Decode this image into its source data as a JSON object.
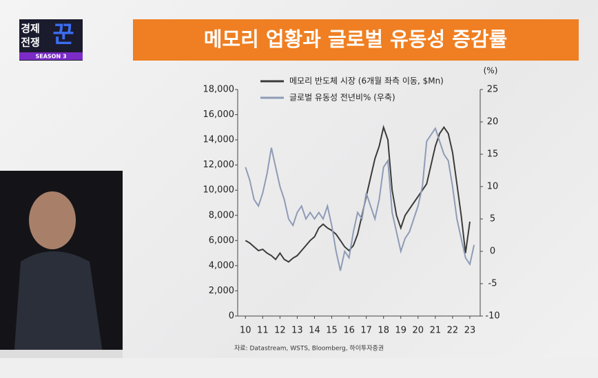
{
  "logo": {
    "line1": "경제",
    "line2": "전쟁",
    "mark": "꾼",
    "season": "SEASON 3"
  },
  "chart_data": {
    "type": "line",
    "title": "메모리 업황과 글로벌 유동성 증감률",
    "y2_unit": "(%)",
    "source": "자료: Datastream, WSTS, Bloomberg, 하이투자증권",
    "x": [
      10,
      10.25,
      10.5,
      10.75,
      11,
      11.25,
      11.5,
      11.75,
      12,
      12.25,
      12.5,
      12.75,
      13,
      13.25,
      13.5,
      13.75,
      14,
      14.25,
      14.5,
      14.75,
      15,
      15.25,
      15.5,
      15.75,
      16,
      16.25,
      16.5,
      16.75,
      17,
      17.25,
      17.5,
      17.75,
      18,
      18.25,
      18.5,
      18.75,
      19,
      19.25,
      19.5,
      19.75,
      20,
      20.25,
      20.5,
      20.75,
      21,
      21.25,
      21.5,
      21.75,
      22,
      22.25,
      22.5,
      22.75,
      23,
      23.25
    ],
    "xlim": [
      9.55,
      23.6
    ],
    "xticks": [
      10,
      11,
      12,
      13,
      14,
      15,
      16,
      17,
      18,
      19,
      20,
      21,
      22,
      23
    ],
    "ylim": [
      0,
      18000
    ],
    "yticks": [
      {
        "value": 0,
        "label": "0"
      },
      {
        "value": 2000,
        "label": "2,000"
      },
      {
        "value": 4000,
        "label": "4,000"
      },
      {
        "value": 6000,
        "label": "6,000"
      },
      {
        "value": 8000,
        "label": "8,000"
      },
      {
        "value": 10000,
        "label": "10,000"
      },
      {
        "value": 12000,
        "label": "12,000"
      },
      {
        "value": 14000,
        "label": "14,000"
      },
      {
        "value": 16000,
        "label": "16,000"
      },
      {
        "value": 18000,
        "label": "18,000"
      }
    ],
    "y2lim": [
      -10,
      25
    ],
    "y2ticks": [
      -10,
      -5,
      0,
      5,
      10,
      15,
      20,
      25
    ],
    "series": [
      {
        "name": "메모리 반도체 시장 (6개월 좌측 이동, $Mn)",
        "color": "#3a3a3a",
        "values": [
          6000,
          5800,
          5500,
          5200,
          5300,
          5000,
          4800,
          4500,
          5000,
          4500,
          4300,
          4600,
          4800,
          5200,
          5600,
          6000,
          6300,
          7000,
          7300,
          7000,
          6800,
          6500,
          6000,
          5500,
          5200,
          5600,
          6500,
          8000,
          9500,
          11000,
          12500,
          13500,
          15000,
          14000,
          10000,
          8000,
          7000,
          8000,
          8500,
          9000,
          9500,
          10000,
          10500,
          12000,
          13500,
          14500,
          15000,
          14500,
          13000,
          10500,
          8000,
          5000,
          7500,
          null
        ]
      },
      {
        "name": "글로벌 유동성 전년비% (우축)",
        "color": "#8e9bb5",
        "axis": "y2",
        "values": [
          13,
          11,
          8,
          7,
          9,
          12,
          16,
          13,
          10,
          8,
          5,
          4,
          6,
          7,
          5,
          6,
          5,
          6,
          5,
          7,
          4,
          0,
          -3,
          0,
          -1,
          3,
          6,
          5,
          9,
          7,
          5,
          8,
          13,
          14,
          6,
          3,
          0,
          2,
          3,
          5,
          7,
          10,
          17,
          18,
          19,
          17,
          15,
          14,
          10,
          5,
          2,
          -1,
          -2,
          1
        ]
      }
    ]
  }
}
